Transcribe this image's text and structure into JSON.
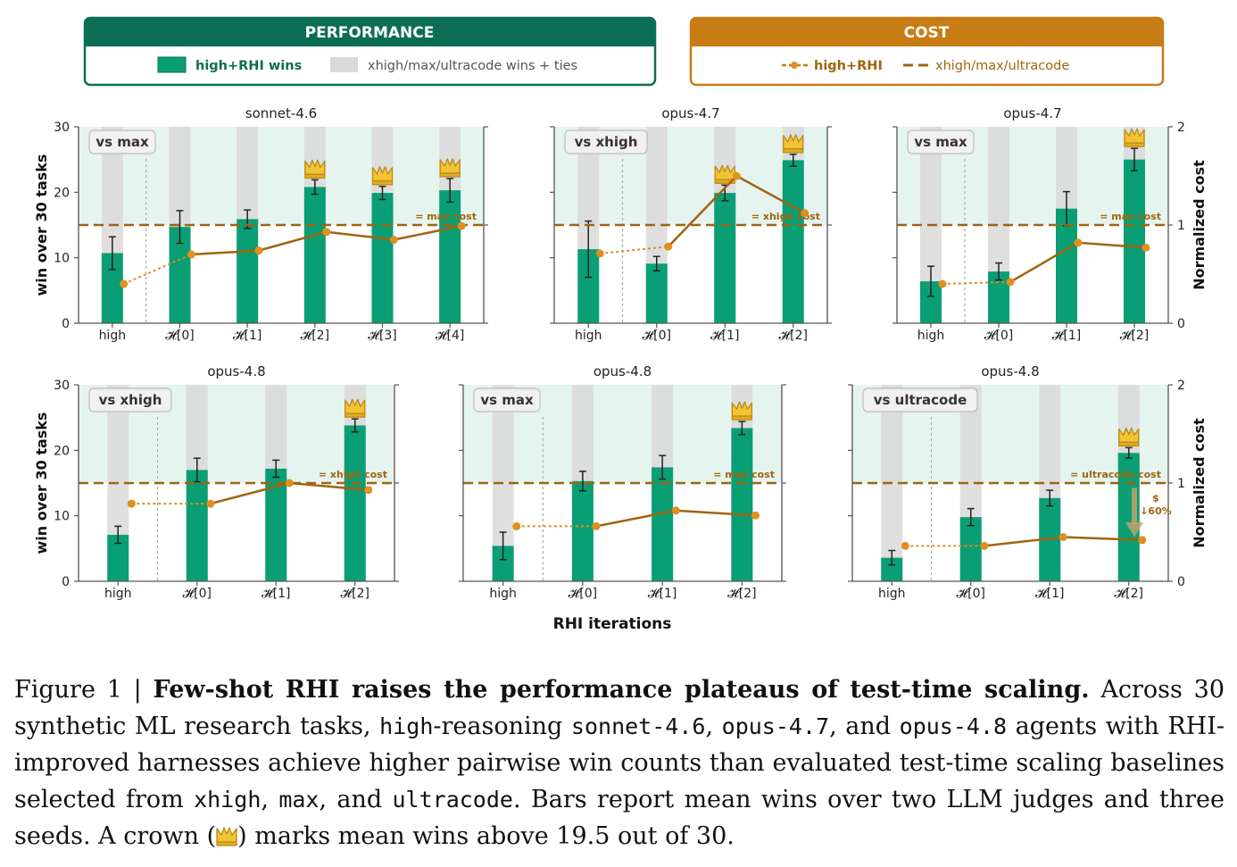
{
  "legend": {
    "performance_title": "PERFORMANCE",
    "performance_items": [
      "high+RHI wins",
      "xhigh/max/ultracode wins + ties"
    ],
    "cost_title": "COST",
    "cost_items": [
      "high+RHI",
      "xhigh/max/ultracode"
    ]
  },
  "axes": {
    "ylabel_left": "win over 30 tasks",
    "ylabel_right": "Normalized cost",
    "xlabel": "RHI iterations",
    "left_ticks": [
      "0",
      "10",
      "20",
      "30"
    ],
    "right_ticks": [
      "0",
      "1",
      "2"
    ]
  },
  "colors": {
    "green": "#0a9e74",
    "green_dark": "#0b6e52",
    "gray": "#d9d9d9",
    "orange": "#c87d14",
    "orange_line": "#a0640f",
    "zone": "#e6f4ef"
  },
  "chart_data": [
    {
      "type": "bar",
      "title": "sonnet-4.6",
      "badge": "vs max",
      "categories": [
        "high",
        "𝓗[0]",
        "𝓗[1]",
        "𝓗[2]",
        "𝓗[3]",
        "𝓗[4]"
      ],
      "series": [
        {
          "name": "high+RHI wins",
          "values": [
            10.7,
            14.7,
            15.9,
            20.8,
            19.9,
            20.3
          ],
          "err": [
            2.5,
            2.5,
            1.4,
            1.1,
            1.0,
            1.8
          ]
        }
      ],
      "cost": [
        0.4,
        0.7,
        0.74,
        0.93,
        0.85,
        0.99
      ],
      "baseline_cost": 1.0,
      "baseline_label": "= max cost",
      "crowns": [
        3,
        4,
        5
      ],
      "ylim": [
        0,
        30
      ],
      "cost_ylim": [
        0,
        2
      ]
    },
    {
      "type": "bar",
      "title": "opus-4.7",
      "badge": "vs xhigh",
      "categories": [
        "high",
        "𝓗[0]",
        "𝓗[1]",
        "𝓗[2]"
      ],
      "series": [
        {
          "name": "high+RHI wins",
          "values": [
            11.3,
            9.1,
            19.9,
            24.9
          ],
          "err": [
            4.3,
            1.1,
            1.2,
            0.9
          ]
        }
      ],
      "cost": [
        0.71,
        0.78,
        1.5,
        1.12
      ],
      "baseline_cost": 1.0,
      "baseline_label": "= xhigh cost",
      "crowns": [
        2,
        3
      ],
      "ylim": [
        0,
        30
      ],
      "cost_ylim": [
        0,
        2
      ]
    },
    {
      "type": "bar",
      "title": "opus-4.7",
      "badge": "vs max",
      "categories": [
        "high",
        "𝓗[0]",
        "𝓗[1]",
        "𝓗[2]"
      ],
      "series": [
        {
          "name": "high+RHI wins",
          "values": [
            6.4,
            7.9,
            17.5,
            25.0
          ],
          "err": [
            2.3,
            1.3,
            2.6,
            1.7
          ]
        }
      ],
      "cost": [
        0.4,
        0.42,
        0.82,
        0.77
      ],
      "baseline_cost": 1.0,
      "baseline_label": "= max cost",
      "crowns": [
        3
      ],
      "ylim": [
        0,
        30
      ],
      "cost_ylim": [
        0,
        2
      ]
    },
    {
      "type": "bar",
      "title": "opus-4.8",
      "badge": "vs xhigh",
      "categories": [
        "high",
        "𝓗[0]",
        "𝓗[1]",
        "𝓗[2]"
      ],
      "series": [
        {
          "name": "high+RHI wins",
          "values": [
            7.1,
            17.0,
            17.2,
            23.8
          ],
          "err": [
            1.3,
            1.8,
            1.3,
            1.0
          ]
        }
      ],
      "cost": [
        0.79,
        0.79,
        1.0,
        0.93
      ],
      "baseline_cost": 1.0,
      "baseline_label": "= xhigh cost",
      "crowns": [
        3
      ],
      "ylim": [
        0,
        30
      ],
      "cost_ylim": [
        0,
        2
      ]
    },
    {
      "type": "bar",
      "title": "opus-4.8",
      "badge": "vs max",
      "categories": [
        "high",
        "𝓗[0]",
        "𝓗[1]",
        "𝓗[2]"
      ],
      "series": [
        {
          "name": "high+RHI wins",
          "values": [
            5.4,
            15.3,
            17.4,
            23.4
          ],
          "err": [
            2.1,
            1.5,
            1.8,
            1.0
          ]
        }
      ],
      "cost": [
        0.56,
        0.56,
        0.72,
        0.67
      ],
      "baseline_cost": 1.0,
      "baseline_label": "= max cost",
      "crowns": [
        3
      ],
      "ylim": [
        0,
        30
      ],
      "cost_ylim": [
        0,
        2
      ]
    },
    {
      "type": "bar",
      "title": "opus-4.8",
      "badge": "vs ultracode",
      "categories": [
        "high",
        "𝓗[0]",
        "𝓗[1]",
        "𝓗[2]"
      ],
      "series": [
        {
          "name": "high+RHI wins",
          "values": [
            3.6,
            9.8,
            12.7,
            19.6
          ],
          "err": [
            1.1,
            1.3,
            1.2,
            0.8
          ]
        }
      ],
      "cost": [
        0.36,
        0.36,
        0.45,
        0.42
      ],
      "baseline_cost": 1.0,
      "baseline_label": "= ultracode cost",
      "crowns": [
        3
      ],
      "ylim": [
        0,
        30
      ],
      "cost_ylim": [
        0,
        2
      ],
      "annotation": {
        "line1": "$",
        "line2": "↓60%"
      }
    }
  ],
  "caption": {
    "prefix": "Figure 1 | ",
    "bold": "Few-shot RHI raises the performance plateaus of test-time scaling.",
    "t1": " Across 30 synthetic ML research tasks, ",
    "m_high": "high",
    "t2": "-reasoning ",
    "m_sonnet": "sonnet-4.6",
    "t3": ", ",
    "m_opus47": "opus-4.7",
    "t4": ", and ",
    "m_opus48": "opus-4.8",
    "t5": " agents with RHI-improved harnesses achieve higher pairwise win counts than evaluated test-time scaling baselines selected from ",
    "m_xhigh": "xhigh",
    "t6": ", ",
    "m_max": "max",
    "t7": ", and ",
    "m_ultra": "ultracode",
    "t8": ". Bars report mean wins over two LLM judges and three seeds. A crown (",
    "t9": ") marks mean wins above 19.5 out of 30."
  }
}
